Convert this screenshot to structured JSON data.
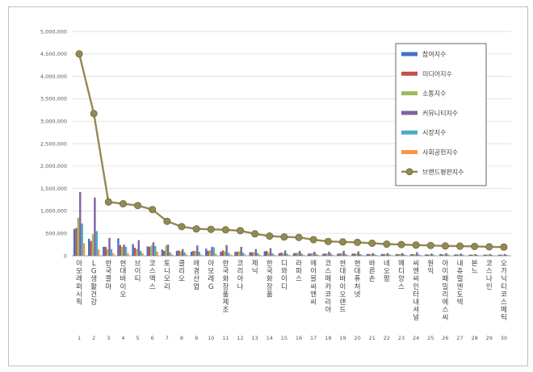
{
  "chart_data": {
    "type": "bar",
    "yticks": [
      "0",
      "500,000",
      "1,000,000",
      "1,500,000",
      "2,000,000",
      "2,500,000",
      "3,000,000",
      "3,500,000",
      "4,000,000",
      "4,500,000",
      "5,000,000"
    ],
    "ylim": [
      0,
      5000000
    ],
    "grid": true,
    "legend_position": "top-right",
    "categories": [
      "아모레퍼시픽",
      "LG생활건강",
      "한국콜마",
      "현대바이오",
      "브이티",
      "코스맥스",
      "토니모리",
      "클리오",
      "애경산업",
      "아모레G",
      "한국화장품제조",
      "코리아나",
      "제닉",
      "한국화장품",
      "디와이디",
      "라파스",
      "에이블씨엔씨",
      "코스메카코리아",
      "현대바이오랜드",
      "현대퓨처넷",
      "바른손",
      "네오팜",
      "메디앙스",
      "씨엔씨인터내셔널",
      "원익",
      "아이패밀리에스씨",
      "내츄럴엔도텍",
      "본느",
      "코스나인",
      "오가닉티코스메틱"
    ],
    "ranks": [
      "1",
      "2",
      "3",
      "4",
      "5",
      "6",
      "7",
      "8",
      "9",
      "10",
      "11",
      "12",
      "13",
      "14",
      "15",
      "16",
      "17",
      "18",
      "19",
      "20",
      "21",
      "22",
      "23",
      "24",
      "25",
      "26",
      "27",
      "28",
      "29",
      "30"
    ],
    "series": [
      {
        "name": "참여지수",
        "color": "#4472c4",
        "values": [
          600000,
          380000,
          200000,
          390000,
          260000,
          210000,
          140000,
          110000,
          90000,
          160000,
          90000,
          90000,
          80000,
          100000,
          60000,
          60000,
          50000,
          45000,
          50000,
          50000,
          40000,
          40000,
          40000,
          35000,
          30000,
          40000,
          30000,
          25000,
          25000,
          25000
        ]
      },
      {
        "name": "미디어지수",
        "color": "#c0504d",
        "values": [
          620000,
          330000,
          200000,
          240000,
          180000,
          200000,
          110000,
          120000,
          110000,
          110000,
          120000,
          90000,
          80000,
          110000,
          70000,
          60000,
          50000,
          50000,
          50000,
          50000,
          40000,
          40000,
          35000,
          35000,
          30000,
          30000,
          30000,
          25000,
          25000,
          25000
        ]
      },
      {
        "name": "소통지수",
        "color": "#9bbb59",
        "values": [
          850000,
          480000,
          150000,
          200000,
          150000,
          230000,
          230000,
          100000,
          110000,
          120000,
          100000,
          100000,
          80000,
          70000,
          60000,
          70000,
          60000,
          50000,
          60000,
          50000,
          40000,
          40000,
          40000,
          35000,
          30000,
          30000,
          30000,
          25000,
          25000,
          25000
        ]
      },
      {
        "name": "커뮤니티지수",
        "color": "#8064a2",
        "values": [
          1420000,
          1300000,
          400000,
          250000,
          350000,
          300000,
          250000,
          150000,
          230000,
          200000,
          240000,
          200000,
          150000,
          170000,
          120000,
          110000,
          90000,
          90000,
          110000,
          100000,
          60000,
          60000,
          60000,
          80000,
          50000,
          60000,
          50000,
          40000,
          40000,
          40000
        ]
      },
      {
        "name": "시장지수",
        "color": "#4bacc6",
        "values": [
          720000,
          550000,
          150000,
          200000,
          110000,
          220000,
          80000,
          80000,
          90000,
          190000,
          70000,
          70000,
          60000,
          60000,
          50000,
          50000,
          40000,
          50000,
          40000,
          40000,
          30000,
          30000,
          30000,
          30000,
          25000,
          25000,
          25000,
          20000,
          20000,
          20000
        ]
      },
      {
        "name": "사회공헌지수",
        "color": "#f79646",
        "values": [
          280000,
          140000,
          60000,
          60000,
          60000,
          90000,
          40000,
          30000,
          30000,
          50000,
          30000,
          30000,
          25000,
          25000,
          20000,
          20000,
          20000,
          20000,
          20000,
          20000,
          15000,
          15000,
          15000,
          15000,
          10000,
          10000,
          10000,
          10000,
          10000,
          10000
        ]
      },
      {
        "name": "브랜드평판지수",
        "color": "#938953",
        "type": "line",
        "values": [
          4500000,
          3170000,
          1200000,
          1160000,
          1120000,
          1030000,
          770000,
          650000,
          600000,
          590000,
          580000,
          560000,
          490000,
          440000,
          420000,
          410000,
          360000,
          320000,
          310000,
          300000,
          280000,
          260000,
          250000,
          240000,
          230000,
          220000,
          215000,
          210000,
          200000,
          195000
        ]
      }
    ]
  }
}
